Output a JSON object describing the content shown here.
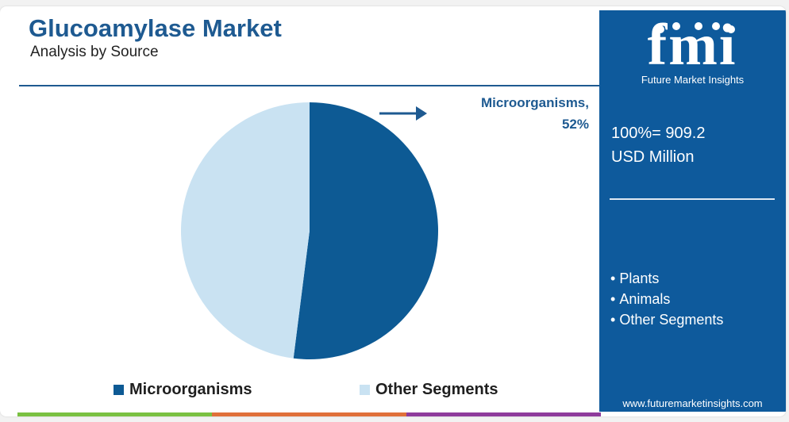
{
  "header": {
    "title": "Glucoamylase Market",
    "subtitle": "Analysis by Source"
  },
  "callout": {
    "line1": "Microorganisms,",
    "line2": "52%"
  },
  "legend": [
    {
      "label": "Microorganisms",
      "color": "#0d5a94"
    },
    {
      "label": "Other Segments",
      "color": "#c9e2f2"
    }
  ],
  "chart_data": {
    "type": "pie",
    "title": "Glucoamylase Market",
    "subtitle": "Analysis by Source",
    "slices": [
      {
        "label": "Microorganisms",
        "value": 52,
        "color": "#0d5a94"
      },
      {
        "label": "Other Segments",
        "value": 48,
        "color": "#c9e2f2"
      }
    ],
    "start_angle": "12 o'clock, clockwise",
    "legend_position": "bottom"
  },
  "panel": {
    "brand_letters": "fmi",
    "brand_name": "Future Market Insights",
    "total_line1": "100%= 909.2",
    "total_line2": "USD Million",
    "other_segments": [
      "Plants",
      "Animals",
      "Other Segments"
    ],
    "website": "www.futuremarketinsights.com"
  },
  "colors": {
    "title": "#1e5a91",
    "panel_bg": "#0e5a9c",
    "bottom_bar": [
      "#7ac142",
      "#e0703a",
      "#8e3b9c",
      "#a7c7e7"
    ]
  }
}
